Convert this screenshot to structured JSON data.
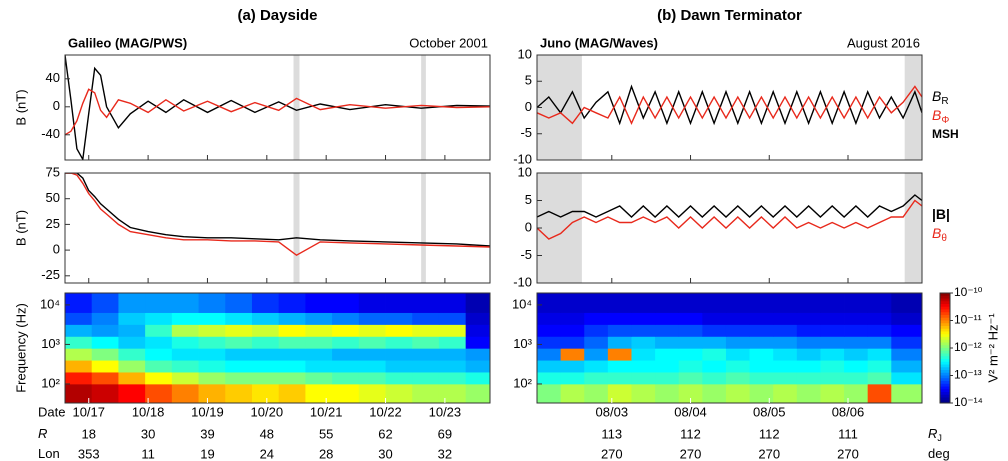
{
  "chart_data": [
    {
      "type": "line",
      "title": "(a) Dayside",
      "source": "Galileo (MAG/PWS)",
      "period": "October 2001",
      "ylabel": "B (nT)",
      "xlim": [
        16.6,
        23.76
      ],
      "xticks": [
        17,
        18,
        19,
        20,
        21,
        22,
        23
      ],
      "ylim": [
        -76,
        74
      ],
      "yticks": [
        40,
        0,
        -40
      ],
      "shaded": [
        [
          20.45,
          20.55
        ],
        [
          22.6,
          22.68
        ]
      ],
      "x": [
        16.6,
        16.7,
        16.8,
        16.9,
        17.0,
        17.1,
        17.2,
        17.3,
        17.5,
        17.7,
        18.0,
        18.3,
        18.6,
        19.0,
        19.4,
        19.8,
        20.2,
        20.5,
        20.9,
        21.4,
        22.0,
        22.6,
        23.2,
        23.76
      ],
      "series": [
        {
          "color": "#000000",
          "values": [
            74,
            10,
            -60,
            -75,
            -10,
            55,
            45,
            0,
            -30,
            -10,
            8,
            -8,
            10,
            -8,
            9,
            -8,
            7,
            -5,
            4,
            -4,
            3,
            -2,
            2,
            1
          ]
        },
        {
          "color": "#e8291c",
          "values": [
            -40,
            -35,
            -20,
            5,
            25,
            20,
            -5,
            -15,
            10,
            5,
            -8,
            10,
            -6,
            8,
            -7,
            6,
            -5,
            12,
            -4,
            3,
            -2,
            2,
            -1,
            0
          ]
        }
      ]
    },
    {
      "type": "line",
      "ylabel": "B (nT)",
      "xlim": [
        16.6,
        23.76
      ],
      "xticks": [
        17,
        18,
        19,
        20,
        21,
        22,
        23
      ],
      "ylim": [
        -32,
        75
      ],
      "yticks": [
        75,
        50,
        25,
        0,
        -25
      ],
      "shaded": [
        [
          20.45,
          20.55
        ],
        [
          22.6,
          22.68
        ]
      ],
      "x": [
        16.6,
        16.7,
        16.8,
        16.9,
        17.0,
        17.1,
        17.2,
        17.3,
        17.5,
        17.7,
        18.0,
        18.3,
        18.6,
        19.0,
        19.4,
        19.8,
        20.2,
        20.5,
        20.9,
        21.4,
        22.0,
        22.6,
        23.2,
        23.76
      ],
      "series": [
        {
          "color": "#000000",
          "values": [
            75,
            75,
            75,
            70,
            58,
            52,
            45,
            40,
            30,
            22,
            18,
            15,
            13,
            12,
            12,
            11,
            10,
            12,
            10,
            9,
            8,
            7,
            6,
            4
          ]
        },
        {
          "color": "#e8291c",
          "values": [
            75,
            75,
            73,
            65,
            55,
            48,
            40,
            35,
            25,
            18,
            15,
            12,
            10,
            10,
            9,
            9,
            8,
            -5,
            8,
            7,
            6,
            5,
            4,
            3
          ]
        }
      ]
    },
    {
      "type": "heatmap",
      "ylabel": "Frequency (Hz)",
      "log_y": true,
      "xlim": [
        16.6,
        23.76
      ],
      "ylim": [
        33,
        20000
      ],
      "zlim": [
        -14,
        -10
      ],
      "xticks_title": "Date",
      "xticks": [
        {
          "value": 17,
          "label": "10/17"
        },
        {
          "value": 18,
          "label": "10/18"
        },
        {
          "value": 19,
          "label": "10/19"
        },
        {
          "value": 20,
          "label": "10/20"
        },
        {
          "value": 21,
          "label": "10/21"
        },
        {
          "value": 22,
          "label": "10/22"
        },
        {
          "value": 23,
          "label": "10/23"
        }
      ],
      "yticks": [
        {
          "value": 10000,
          "label": "10⁴"
        },
        {
          "value": 1000,
          "label": "10³"
        },
        {
          "value": 100,
          "label": "10²"
        }
      ],
      "info_rows": [
        {
          "label": "R",
          "values": [
            18,
            30,
            39,
            48,
            55,
            62,
            69
          ]
        },
        {
          "label": "Lon",
          "values": [
            353,
            11,
            19,
            24,
            28,
            30,
            32
          ]
        }
      ],
      "x_edges": [
        16.6,
        17.05,
        17.5,
        17.95,
        18.4,
        18.85,
        19.3,
        19.75,
        20.2,
        20.65,
        21.1,
        21.55,
        22.0,
        22.45,
        22.9,
        23.35,
        23.76
      ],
      "y_edges": [
        33,
        100,
        200,
        400,
        800,
        1600,
        3200,
        6400,
        20000
      ],
      "values": [
        [
          -10.2,
          -10.3,
          -10.5,
          -10.8,
          -11,
          -11.2,
          -11.3,
          -11.4,
          -11.3,
          -11.5,
          -11.5,
          -11.6,
          -11.7,
          -11.8,
          -11.8,
          -11.9
        ],
        [
          -10.6,
          -10.8,
          -11.2,
          -11.5,
          -11.7,
          -11.9,
          -12,
          -12,
          -12,
          -12.1,
          -12.2,
          -12.2,
          -12.3,
          -12.3,
          -12.3,
          -12.4
        ],
        [
          -11.2,
          -11.5,
          -11.9,
          -12.2,
          -12.3,
          -12.4,
          -12.5,
          -12.5,
          -12.5,
          -12.6,
          -12.6,
          -12.6,
          -12.7,
          -12.7,
          -12.7,
          -12.8
        ],
        [
          -11.8,
          -12,
          -12.3,
          -12.5,
          -12.6,
          -12.6,
          -12.7,
          -12.7,
          -12.7,
          -12.7,
          -12.8,
          -12.8,
          -12.8,
          -12.8,
          -12.8,
          -12.9
        ],
        [
          -12.3,
          -12.5,
          -12.7,
          -12.6,
          -12.4,
          -12.3,
          -12.2,
          -12.3,
          -12.2,
          -12.2,
          -12.3,
          -12.2,
          -12.3,
          -12.2,
          -12.3,
          -13.5
        ],
        [
          -12.8,
          -12.9,
          -12.8,
          -12.3,
          -11.8,
          -11.7,
          -11.6,
          -11.7,
          -11.5,
          -11.6,
          -11.5,
          -11.6,
          -11.5,
          -11.6,
          -11.6,
          -13.6
        ],
        [
          -13.2,
          -13,
          -12.7,
          -12.6,
          -12.5,
          -12.5,
          -12.6,
          -12.7,
          -12.8,
          -12.9,
          -13,
          -13.1,
          -13.1,
          -13.2,
          -13.2,
          -13.7
        ],
        [
          -13.4,
          -13.2,
          -12.9,
          -12.9,
          -12.9,
          -13,
          -13.1,
          -13.3,
          -13.4,
          -13.5,
          -13.5,
          -13.6,
          -13.6,
          -13.6,
          -13.6,
          -13.8
        ]
      ]
    },
    {
      "type": "line",
      "title": "(b) Dawn Terminator",
      "source": "Juno (MAG/Waves)",
      "period": "August 2016",
      "xlim": [
        2.05,
        6.94
      ],
      "xticks": [
        3,
        4,
        5,
        6
      ],
      "ylim": [
        -10,
        10
      ],
      "yticks": [
        10,
        5,
        0,
        -5,
        -10
      ],
      "shaded": [
        [
          2.05,
          2.62
        ],
        [
          6.72,
          6.94
        ]
      ],
      "shade_label": "MSH",
      "shade_color": "#dcdcdc",
      "x": [
        2.05,
        2.2,
        2.35,
        2.5,
        2.65,
        2.8,
        2.95,
        3.1,
        3.25,
        3.4,
        3.55,
        3.7,
        3.85,
        4.0,
        4.15,
        4.3,
        4.45,
        4.6,
        4.75,
        4.9,
        5.05,
        5.2,
        5.35,
        5.5,
        5.65,
        5.8,
        5.95,
        6.1,
        6.25,
        6.4,
        6.55,
        6.7,
        6.85,
        6.94
      ],
      "series": [
        {
          "name": "B",
          "name_sub": "R",
          "color": "#000000",
          "values": [
            0,
            2,
            -1,
            3,
            -2,
            1,
            3,
            -3,
            4,
            -2,
            3,
            -3,
            3,
            -3,
            3,
            -3,
            3,
            -3,
            3,
            -3,
            3,
            -3,
            3,
            -3,
            3,
            -3,
            3,
            -3,
            3,
            -2,
            2,
            -2,
            3,
            -1
          ]
        },
        {
          "name": "B",
          "name_sub": "Φ",
          "color": "#e8291c",
          "values": [
            -1,
            -2,
            -1,
            -3,
            0,
            -1,
            -2,
            2,
            -3,
            2,
            -2,
            2,
            -2,
            2,
            -2,
            2,
            -2,
            2,
            -2,
            2,
            -2,
            2,
            -2,
            2,
            -2,
            2,
            -2,
            2,
            -2,
            2,
            -1,
            1,
            4,
            2
          ]
        }
      ]
    },
    {
      "type": "line",
      "xlim": [
        2.05,
        6.94
      ],
      "xticks": [
        3,
        4,
        5,
        6
      ],
      "ylim": [
        -10,
        10
      ],
      "yticks": [
        10,
        5,
        0,
        -5,
        -10
      ],
      "shaded": [
        [
          2.05,
          2.62
        ],
        [
          6.72,
          6.94
        ]
      ],
      "x": [
        2.05,
        2.2,
        2.35,
        2.5,
        2.65,
        2.8,
        2.95,
        3.1,
        3.25,
        3.4,
        3.55,
        3.7,
        3.85,
        4.0,
        4.15,
        4.3,
        4.45,
        4.6,
        4.75,
        4.9,
        5.05,
        5.2,
        5.35,
        5.5,
        5.65,
        5.8,
        5.95,
        6.1,
        6.25,
        6.4,
        6.55,
        6.7,
        6.85,
        6.94
      ],
      "series": [
        {
          "name": "|B|",
          "color": "#000000",
          "values": [
            2,
            3,
            2,
            3,
            3,
            2,
            3,
            4,
            2,
            4,
            2,
            4,
            2,
            4,
            2,
            4,
            2,
            4,
            2,
            4,
            2,
            4,
            2,
            4,
            2,
            4,
            2,
            4,
            2,
            4,
            3,
            4,
            6,
            5
          ]
        },
        {
          "name": "B",
          "name_sub": "θ",
          "color": "#e8291c",
          "values": [
            0,
            -2,
            -1,
            1,
            2,
            1,
            2,
            1,
            1,
            2,
            1,
            2,
            0,
            2,
            0,
            2,
            0,
            2,
            0,
            2,
            0,
            2,
            0,
            1,
            0,
            1,
            0,
            1,
            0,
            1,
            2,
            2,
            5,
            4
          ]
        }
      ]
    },
    {
      "type": "heatmap",
      "log_y": true,
      "xlim": [
        2.05,
        6.94
      ],
      "ylim": [
        33,
        20000
      ],
      "zlim": [
        -14,
        -10
      ],
      "xticks": [
        {
          "value": 3,
          "label": "08/03"
        },
        {
          "value": 4,
          "label": "08/04"
        },
        {
          "value": 5,
          "label": "08/05"
        },
        {
          "value": 6,
          "label": "08/06"
        }
      ],
      "yticks": [
        {
          "value": 10000,
          "label": "10⁴"
        },
        {
          "value": 1000,
          "label": "10³"
        },
        {
          "value": 100,
          "label": "10²"
        }
      ],
      "info_rows": [
        {
          "label": "R",
          "label_sub": "J",
          "values": [
            113,
            112,
            112,
            111
          ]
        },
        {
          "label": "deg",
          "values": [
            270,
            270,
            270,
            270
          ]
        }
      ],
      "colorbar_label": "V² m⁻² Hz⁻¹",
      "colorbar_ticks": [
        {
          "value": -10,
          "label": "10⁻¹⁰"
        },
        {
          "value": -11,
          "label": "10⁻¹¹"
        },
        {
          "value": -12,
          "label": "10⁻¹²"
        },
        {
          "value": -13,
          "label": "10⁻¹³"
        },
        {
          "value": -14,
          "label": "10⁻¹⁴"
        }
      ],
      "x_edges": [
        2.05,
        2.35,
        2.65,
        2.95,
        3.25,
        3.55,
        3.85,
        4.15,
        4.45,
        4.75,
        5.05,
        5.35,
        5.65,
        5.95,
        6.25,
        6.55,
        6.94
      ],
      "y_edges": [
        33,
        100,
        200,
        400,
        800,
        1600,
        3200,
        6400,
        20000
      ],
      "values": [
        [
          -12.0,
          -11.8,
          -11.9,
          -11.7,
          -11.8,
          -11.9,
          -11.8,
          -11.9,
          -11.8,
          -11.9,
          -11.8,
          -11.9,
          -11.8,
          -11.9,
          -10.8,
          -11.9
        ],
        [
          -12.4,
          -12.4,
          -12.3,
          -12.3,
          -12.3,
          -12.3,
          -12.2,
          -12.3,
          -12.2,
          -12.3,
          -12.3,
          -12.3,
          -12.3,
          -12.3,
          -12.2,
          -12.6
        ],
        [
          -12.7,
          -12.7,
          -12.6,
          -12.5,
          -12.5,
          -12.5,
          -12.4,
          -12.5,
          -12.4,
          -12.5,
          -12.5,
          -12.5,
          -12.4,
          -12.5,
          -12.4,
          -12.8
        ],
        [
          -13.0,
          -11.0,
          -12.9,
          -11.0,
          -12.6,
          -12.5,
          -12.5,
          -12.4,
          -12.6,
          -12.5,
          -12.6,
          -12.7,
          -12.6,
          -12.7,
          -12.6,
          -13.0
        ],
        [
          -13.3,
          -13.3,
          -13.1,
          -12.8,
          -12.7,
          -12.8,
          -12.8,
          -12.8,
          -12.9,
          -12.9,
          -12.9,
          -13.0,
          -13.0,
          -13.0,
          -13.0,
          -13.3
        ],
        [
          -13.5,
          -13.5,
          -13.3,
          -13.2,
          -13.2,
          -13.2,
          -13.2,
          -13.3,
          -13.3,
          -13.3,
          -13.3,
          -13.4,
          -13.4,
          -13.4,
          -13.4,
          -13.5
        ],
        [
          -13.6,
          -13.6,
          -13.5,
          -13.5,
          -13.5,
          -13.5,
          -13.5,
          -13.6,
          -13.6,
          -13.6,
          -13.6,
          -13.6,
          -13.6,
          -13.6,
          -13.6,
          -13.7
        ],
        [
          -13.7,
          -13.7,
          -13.7,
          -13.7,
          -13.7,
          -13.7,
          -13.7,
          -13.7,
          -13.7,
          -13.7,
          -13.7,
          -13.7,
          -13.7,
          -13.7,
          -13.7,
          -13.8
        ]
      ]
    }
  ]
}
